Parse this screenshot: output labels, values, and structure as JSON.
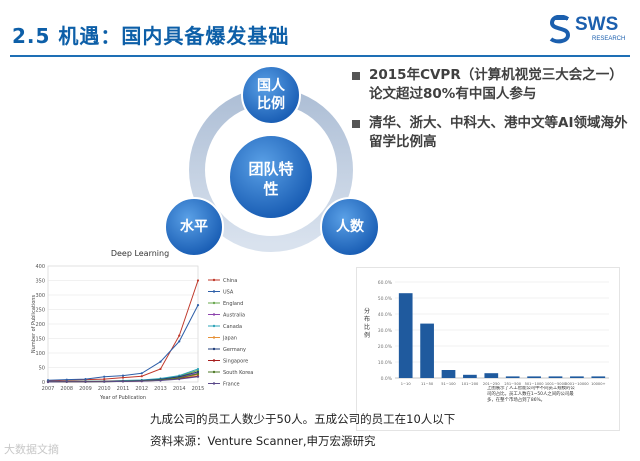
{
  "header": {
    "title": "2.5 机遇：国内具备爆发基础",
    "logo_text": "SWS",
    "logo_sub": "RESEARCH"
  },
  "diagram": {
    "center": "团队特\n性",
    "nodes": [
      "国人\n比例",
      "人数",
      "水平"
    ]
  },
  "bullets": [
    "2015年CVPR（计算机视觉三大会之一）论文超过80%有中国人参与",
    "清华、浙大、中科大、港中文等AI领域海外留学比例高"
  ],
  "chart_data": [
    {
      "type": "line",
      "title": "Deep Learning",
      "xlabel": "Year of Publication",
      "ylabel": "Number of Publications",
      "x": [
        2007,
        2008,
        2009,
        2010,
        2011,
        2012,
        2013,
        2014,
        2015
      ],
      "ylim": [
        0,
        400
      ],
      "yticks": [
        0,
        50,
        100,
        150,
        200,
        250,
        300,
        350,
        400
      ],
      "series": [
        {
          "name": "China",
          "color": "#c0392b",
          "values": [
            4,
            6,
            8,
            10,
            15,
            20,
            45,
            160,
            350
          ]
        },
        {
          "name": "USA",
          "color": "#2e5fa8",
          "values": [
            6,
            8,
            10,
            18,
            22,
            30,
            70,
            140,
            265
          ]
        },
        {
          "name": "England",
          "color": "#6aa84f",
          "values": [
            1,
            2,
            2,
            3,
            4,
            6,
            10,
            20,
            40
          ]
        },
        {
          "name": "Australia",
          "color": "#8e44ad",
          "values": [
            1,
            1,
            2,
            2,
            3,
            5,
            8,
            16,
            30
          ]
        },
        {
          "name": "Canada",
          "color": "#2fa4b8",
          "values": [
            1,
            2,
            3,
            3,
            5,
            7,
            12,
            22,
            45
          ]
        },
        {
          "name": "Japan",
          "color": "#e69138",
          "values": [
            1,
            1,
            2,
            2,
            3,
            4,
            7,
            14,
            25
          ]
        },
        {
          "name": "Germany",
          "color": "#1f3d7a",
          "values": [
            1,
            1,
            1,
            2,
            3,
            5,
            9,
            18,
            35
          ]
        },
        {
          "name": "Singapore",
          "color": "#a61c1c",
          "values": [
            0,
            1,
            1,
            2,
            2,
            3,
            6,
            12,
            20
          ]
        },
        {
          "name": "South Korea",
          "color": "#4f7a28",
          "values": [
            0,
            1,
            1,
            1,
            2,
            4,
            7,
            14,
            28
          ]
        },
        {
          "name": "France",
          "color": "#5b4a8a",
          "values": [
            0,
            1,
            1,
            1,
            2,
            3,
            5,
            10,
            18
          ]
        }
      ]
    },
    {
      "type": "bar",
      "ylabel": "分布比例",
      "categories": [
        "1~10",
        "11~50",
        "51~100",
        "101~200",
        "201~250",
        "251~500",
        "501~1000",
        "1001~5000",
        "5001~10000",
        "10000+"
      ],
      "values": [
        53,
        34,
        5,
        2,
        3,
        1,
        1,
        1,
        1,
        1
      ],
      "ylim": [
        0,
        60
      ],
      "yticks": [
        "0.0%",
        "10.0%",
        "20.0%",
        "30.0%",
        "40.0%",
        "50.0%",
        "60.0%"
      ],
      "annotation": "上图展示了人工智能公司中不同员工规模的公司的占比。员工人数在1~50人之间的公司最多，在整个市场占到了86%。"
    }
  ],
  "captions": {
    "line1": "九成公司的员工人数少于50人。五成公司的员工在10人以下",
    "line2": "资料来源：Venture Scanner,申万宏源研究"
  },
  "watermark": "大数据文摘"
}
